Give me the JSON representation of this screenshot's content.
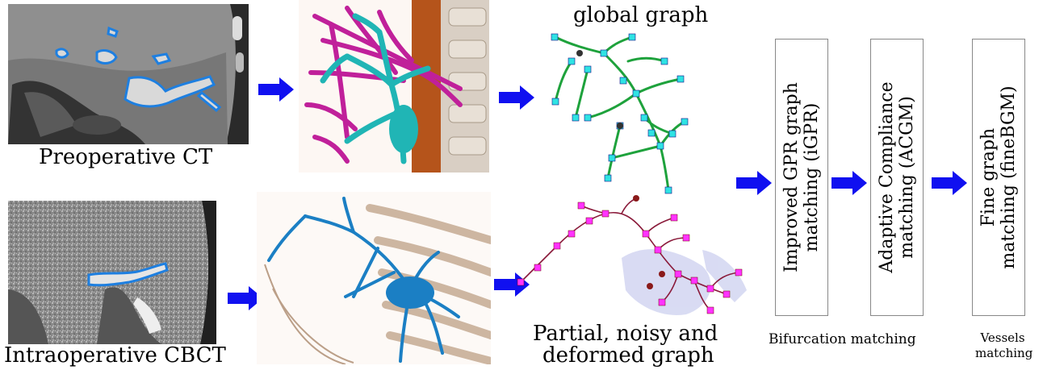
{
  "left": {
    "ct_caption": "Preoperative CT",
    "cbct_caption": "Intraoperative CBCT"
  },
  "graphs": {
    "global_caption": "global graph",
    "partial_caption_line1": "Partial, noisy and",
    "partial_caption_line2": "deformed graph"
  },
  "steps": [
    {
      "line1": "Improved GPR graph",
      "line2": "matching (iGPR)"
    },
    {
      "line1": "Adaptive Compliance",
      "line2": "matching (ACGM)"
    },
    {
      "line1": "Fine graph",
      "line2": "matching (fineBGM)"
    }
  ],
  "stage_labels": {
    "bifurcation": "Bifurcation matching",
    "vessels_line1": "Vessels",
    "vessels_line2": "matching"
  },
  "colors": {
    "arrow": "#1010f0",
    "ct_vessel_outline": "#1e7fe0",
    "portal_vessels": "#20b5b5",
    "hepatic_vessels": "#c0209a",
    "cbct_vessels": "#1b7fc4",
    "global_graph_edges": "#1ea23c",
    "global_graph_nodes": "#2fe3e3",
    "partial_graph_edges": "#8a1a3a",
    "partial_graph_nodes": "#ff33ff"
  }
}
